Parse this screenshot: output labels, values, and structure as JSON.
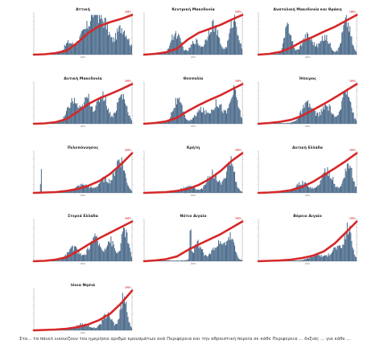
{
  "chart_data": [
    {
      "type": "bar",
      "title": "Αττική",
      "xlabel": "2021",
      "end_label": "100%",
      "peaks": [
        {
          "pos": 0.35,
          "h": 0.28,
          "w": 0.06
        },
        {
          "pos": 0.52,
          "h": 0.55,
          "w": 0.1
        },
        {
          "pos": 0.63,
          "h": 1.0,
          "w": 0.07
        },
        {
          "pos": 0.73,
          "h": 0.7,
          "w": 0.06
        },
        {
          "pos": 0.9,
          "h": 0.72,
          "w": 0.09
        }
      ],
      "cumulative": [
        0,
        0.01,
        0.04,
        0.1,
        0.3,
        0.55,
        0.72,
        0.82,
        0.9,
        1.0
      ]
    },
    {
      "type": "bar",
      "title": "Κεντρική Μακεδονία",
      "xlabel": "2021",
      "end_label": "100%",
      "peaks": [
        {
          "pos": 0.32,
          "h": 0.55,
          "w": 0.07
        },
        {
          "pos": 0.52,
          "h": 0.35,
          "w": 0.06
        },
        {
          "pos": 0.7,
          "h": 0.8,
          "w": 0.08
        },
        {
          "pos": 0.92,
          "h": 0.95,
          "w": 0.06
        }
      ],
      "cumulative": [
        0,
        0.02,
        0.06,
        0.15,
        0.38,
        0.55,
        0.65,
        0.75,
        0.88,
        1.0
      ]
    },
    {
      "type": "bar",
      "title": "Ανατολική Μακεδονία και Θράκη",
      "xlabel": "2021",
      "end_label": "100%",
      "peaks": [
        {
          "pos": 0.3,
          "h": 0.75,
          "w": 0.05
        },
        {
          "pos": 0.5,
          "h": 0.5,
          "w": 0.08
        },
        {
          "pos": 0.68,
          "h": 0.45,
          "w": 0.07
        },
        {
          "pos": 0.9,
          "h": 0.9,
          "w": 0.06
        }
      ],
      "cumulative": [
        0,
        0.02,
        0.07,
        0.18,
        0.33,
        0.45,
        0.58,
        0.7,
        0.85,
        1.0
      ]
    },
    {
      "type": "bar",
      "title": "Δυτική Μακεδονία",
      "xlabel": "2021",
      "end_label": "100%",
      "peaks": [
        {
          "pos": 0.4,
          "h": 0.6,
          "w": 0.08
        },
        {
          "pos": 0.55,
          "h": 0.65,
          "w": 0.06
        },
        {
          "pos": 0.7,
          "h": 0.8,
          "w": 0.07
        },
        {
          "pos": 0.9,
          "h": 0.75,
          "w": 0.07
        }
      ],
      "cumulative": [
        0,
        0.01,
        0.04,
        0.12,
        0.3,
        0.5,
        0.64,
        0.75,
        0.87,
        1.0
      ]
    },
    {
      "type": "bar",
      "title": "Θεσσαλία",
      "xlabel": "2021",
      "end_label": "100%",
      "peaks": [
        {
          "pos": 0.34,
          "h": 0.6,
          "w": 0.07
        },
        {
          "pos": 0.58,
          "h": 0.35,
          "w": 0.08
        },
        {
          "pos": 0.75,
          "h": 0.55,
          "w": 0.08
        },
        {
          "pos": 0.92,
          "h": 0.85,
          "w": 0.06
        }
      ],
      "cumulative": [
        0,
        0.02,
        0.06,
        0.15,
        0.32,
        0.47,
        0.6,
        0.72,
        0.86,
        1.0
      ]
    },
    {
      "type": "bar",
      "title": "Ήπειρος",
      "xlabel": "2021",
      "end_label": "100%",
      "peaks": [
        {
          "pos": 0.5,
          "h": 0.5,
          "w": 0.09
        },
        {
          "pos": 0.7,
          "h": 0.45,
          "w": 0.08
        },
        {
          "pos": 0.9,
          "h": 1.0,
          "w": 0.06
        }
      ],
      "cumulative": [
        0,
        0.02,
        0.05,
        0.1,
        0.2,
        0.35,
        0.5,
        0.66,
        0.83,
        1.0
      ]
    },
    {
      "type": "bar",
      "title": "Πελοπόννησος",
      "xlabel": "2021",
      "end_label": "100%",
      "peaks": [
        {
          "pos": 0.07,
          "h": 0.7,
          "w": 0.006
        },
        {
          "pos": 0.5,
          "h": 0.2,
          "w": 0.1
        },
        {
          "pos": 0.72,
          "h": 0.35,
          "w": 0.08
        },
        {
          "pos": 0.88,
          "h": 0.9,
          "w": 0.07
        }
      ],
      "cumulative": [
        0,
        0.01,
        0.02,
        0.05,
        0.1,
        0.18,
        0.3,
        0.48,
        0.72,
        1.0
      ]
    },
    {
      "type": "bar",
      "title": "Κρήτη",
      "xlabel": "2021",
      "end_label": "100%",
      "peaks": [
        {
          "pos": 0.45,
          "h": 0.15,
          "w": 0.1
        },
        {
          "pos": 0.7,
          "h": 0.5,
          "w": 0.08
        },
        {
          "pos": 0.88,
          "h": 0.85,
          "w": 0.06
        }
      ],
      "cumulative": [
        0,
        0.01,
        0.02,
        0.05,
        0.1,
        0.2,
        0.35,
        0.55,
        0.8,
        1.0
      ]
    },
    {
      "type": "bar",
      "title": "Δυτική Ελλάδα",
      "xlabel": "2021",
      "end_label": "100%",
      "peaks": [
        {
          "pos": 0.45,
          "h": 0.25,
          "w": 0.1
        },
        {
          "pos": 0.7,
          "h": 0.6,
          "w": 0.08
        },
        {
          "pos": 0.92,
          "h": 0.75,
          "w": 0.06
        }
      ],
      "cumulative": [
        0,
        0.01,
        0.03,
        0.07,
        0.15,
        0.28,
        0.45,
        0.62,
        0.8,
        1.0
      ]
    },
    {
      "type": "bar",
      "title": "Στερεά Ελλάδα",
      "xlabel": "2021",
      "end_label": "100%",
      "peaks": [
        {
          "pos": 0.4,
          "h": 0.35,
          "w": 0.08
        },
        {
          "pos": 0.62,
          "h": 0.6,
          "w": 0.08
        },
        {
          "pos": 0.78,
          "h": 0.55,
          "w": 0.06
        },
        {
          "pos": 0.93,
          "h": 0.85,
          "w": 0.05
        }
      ],
      "cumulative": [
        0,
        0.01,
        0.04,
        0.1,
        0.25,
        0.42,
        0.58,
        0.72,
        0.86,
        1.0
      ]
    },
    {
      "type": "bar",
      "title": "Νότιο Αιγαίο",
      "xlabel": "2021",
      "end_label": "100%",
      "peaks": [
        {
          "pos": 0.47,
          "h": 1.0,
          "w": 0.01
        },
        {
          "pos": 0.55,
          "h": 0.45,
          "w": 0.06
        },
        {
          "pos": 0.75,
          "h": 0.45,
          "w": 0.08
        },
        {
          "pos": 0.88,
          "h": 0.6,
          "w": 0.06
        }
      ],
      "cumulative": [
        0,
        0.02,
        0.05,
        0.12,
        0.28,
        0.42,
        0.55,
        0.68,
        0.84,
        1.0
      ]
    },
    {
      "type": "bar",
      "title": "Βόρειο Αιγαίο",
      "xlabel": "2021",
      "end_label": "100%",
      "peaks": [
        {
          "pos": 0.6,
          "h": 0.15,
          "w": 0.1
        },
        {
          "pos": 0.8,
          "h": 0.35,
          "w": 0.08
        },
        {
          "pos": 0.92,
          "h": 0.85,
          "w": 0.05
        }
      ],
      "cumulative": [
        0,
        0.01,
        0.02,
        0.04,
        0.08,
        0.14,
        0.25,
        0.45,
        0.72,
        1.0
      ]
    },
    {
      "type": "bar",
      "title": "Ιόνια Νησιά",
      "xlabel": "2021",
      "end_label": "100%",
      "peaks": [
        {
          "pos": 0.5,
          "h": 0.15,
          "w": 0.1
        },
        {
          "pos": 0.75,
          "h": 0.4,
          "w": 0.07
        },
        {
          "pos": 0.92,
          "h": 0.85,
          "w": 0.05
        }
      ],
      "cumulative": [
        0,
        0.01,
        0.02,
        0.04,
        0.08,
        0.15,
        0.26,
        0.42,
        0.68,
        1.0
      ]
    }
  ],
  "caption": "Στο... τα πάνελ εικονίζουν τον ημερήσιο αριθμό κρουσμάτων ανά Περιφέρεια και την αθροιστική πορεία σε κάθε Περιφέρεια ... δεξιάς ... για κάθε ..."
}
